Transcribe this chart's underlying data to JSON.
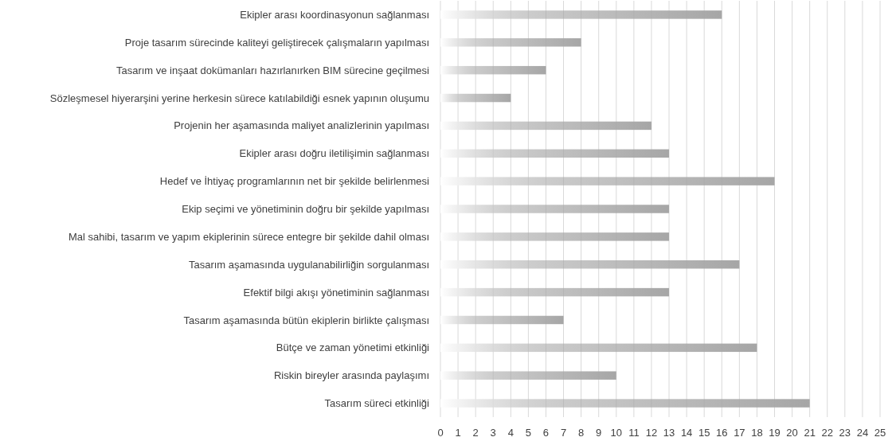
{
  "chart_data": {
    "type": "bar",
    "orientation": "horizontal",
    "categories": [
      "Ekipler arası koordinasyonun sağlanması",
      "Proje tasarım sürecinde kaliteyi geliştirecek çalışmaların yapılması",
      "Tasarım ve inşaat dokümanları hazırlanırken BIM sürecine geçilmesi",
      "Sözleşmesel hiyerarşini yerine herkesin sürece katılabildiği esnek yapının oluşumu",
      "Projenin her aşamasında maliyet analizlerinin yapılması",
      "Ekipler arası doğru iletilişimin sağlanması",
      "Hedef ve İhtiyaç programlarının net bir şekilde belirlenmesi",
      "Ekip seçimi ve yönetiminin doğru bir şekilde yapılması",
      "Mal sahibi, tasarım ve yapım ekiplerinin sürece entegre bir şekilde dahil olması",
      "Tasarım aşamasında uygulanabilirliğin sorgulanması",
      "Efektif bilgi akışı yönetiminin sağlanması",
      "Tasarım aşamasında bütün ekiplerin birlikte çalışması",
      "Bütçe ve zaman yönetimi etkinliği",
      "Riskin bireyler arasında paylaşımı",
      "Tasarım süreci etkinliği"
    ],
    "values": [
      16,
      8,
      6,
      4,
      12,
      13,
      19,
      13,
      13,
      17,
      13,
      7,
      18,
      10,
      21
    ],
    "color": "#a6a6a6",
    "xlim": [
      0,
      25
    ],
    "xticks": [
      0,
      1,
      2,
      3,
      4,
      5,
      6,
      7,
      8,
      9,
      10,
      11,
      12,
      13,
      14,
      15,
      16,
      17,
      18,
      19,
      20,
      21,
      22,
      23,
      24,
      25
    ],
    "grid": "x"
  }
}
